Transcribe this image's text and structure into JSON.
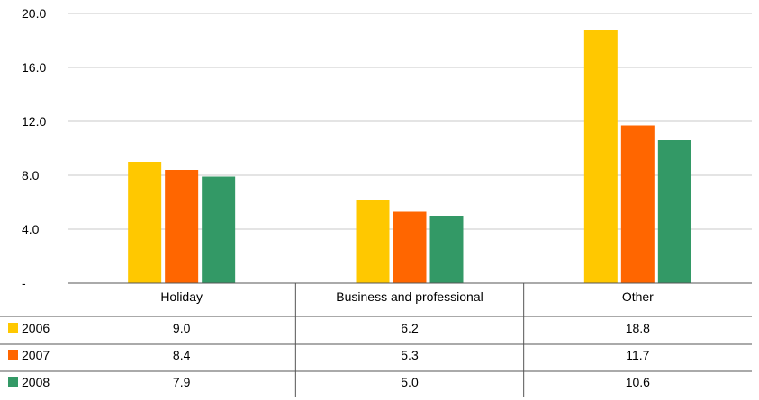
{
  "chart_data": {
    "type": "bar",
    "categories": [
      "Holiday",
      "Business and professional",
      "Other"
    ],
    "series": [
      {
        "name": "2006",
        "values": [
          9.0,
          6.2,
          18.8
        ],
        "color": "#FFC800"
      },
      {
        "name": "2007",
        "values": [
          8.4,
          5.3,
          11.7
        ],
        "color": "#FF6600"
      },
      {
        "name": "2008",
        "values": [
          7.9,
          5.0,
          10.6
        ],
        "color": "#339966"
      }
    ],
    "y_ticks": [
      "-",
      "4.0",
      "8.0",
      "12.0",
      "16.0",
      "20.0"
    ],
    "ylim": [
      0,
      20
    ],
    "grid": true,
    "legend": "data-table-left",
    "table": {
      "rows": [
        [
          "9.0",
          "6.2",
          "18.8"
        ],
        [
          "8.4",
          "5.3",
          "11.7"
        ],
        [
          "7.9",
          "5.0",
          "10.6"
        ]
      ]
    }
  }
}
